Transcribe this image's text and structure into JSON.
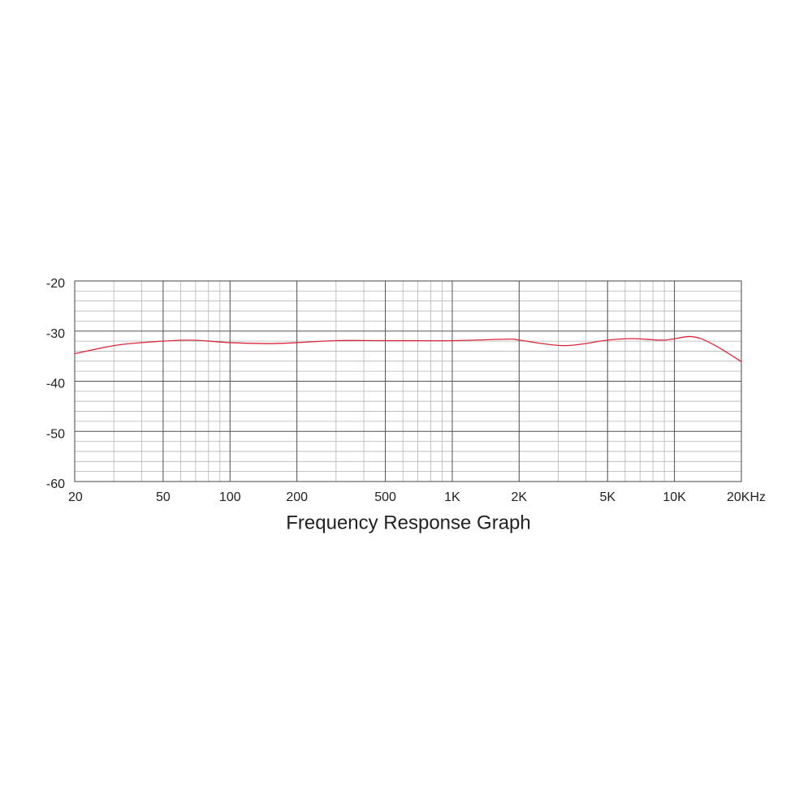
{
  "chart_data": {
    "type": "line",
    "title": "Frequency Response Graph",
    "log_x": true,
    "grid": true,
    "xlim": [
      20,
      20000
    ],
    "ylim": [
      -60,
      -20
    ],
    "xticks": [
      20,
      50,
      100,
      200,
      500,
      {
        "value": 1000,
        "label": "1K"
      },
      {
        "value": 2000,
        "label": "2K"
      },
      {
        "value": 5000,
        "label": "5K"
      },
      {
        "value": 10000,
        "label": "10K"
      },
      {
        "value": 20000,
        "label": "20KHz"
      }
    ],
    "yticks": [
      -20,
      -30,
      -40,
      -50,
      -60
    ],
    "x": [
      20,
      30,
      40,
      65,
      100,
      150,
      200,
      300,
      500,
      1000,
      1800,
      2000,
      3200,
      5000,
      6500,
      9000,
      12000,
      15000,
      20000
    ],
    "series": [
      {
        "color": "#d9263a",
        "values": [
          -34.5,
          -32.9,
          -32.3,
          -31.8,
          -32.3,
          -32.5,
          -32.3,
          -31.9,
          -31.9,
          -31.9,
          -31.6,
          -31.8,
          -32.9,
          -31.8,
          -31.5,
          -31.8,
          -31.1,
          -32.7,
          -36.1
        ]
      }
    ]
  }
}
